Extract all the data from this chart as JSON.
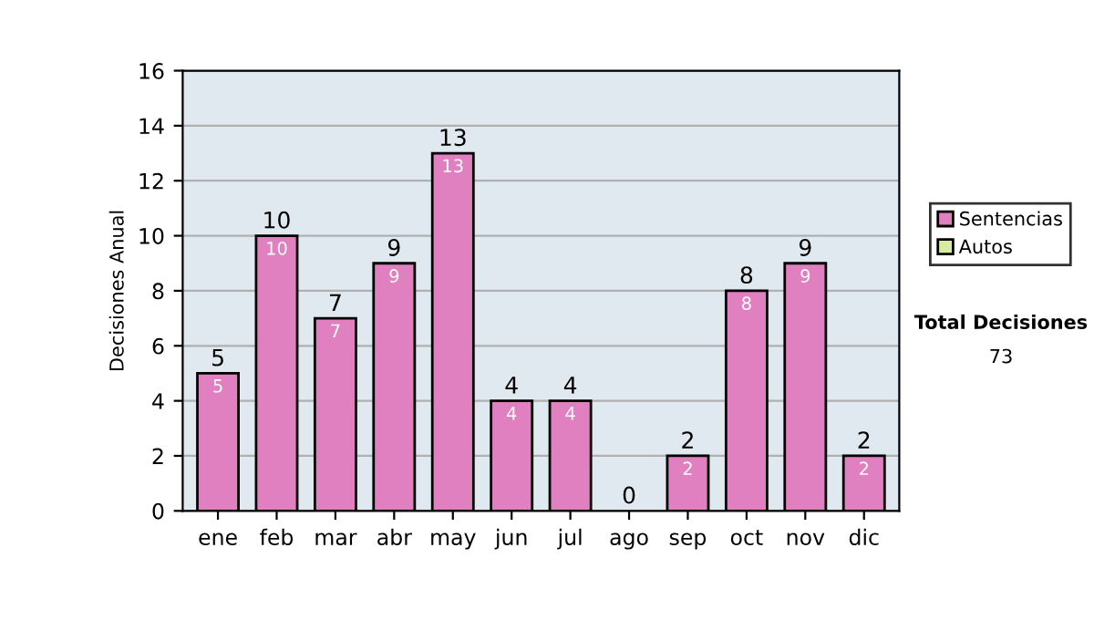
{
  "chart_data": {
    "type": "bar",
    "ylabel": "Decisiones Anual",
    "categories": [
      "ene",
      "feb",
      "mar",
      "abr",
      "may",
      "jun",
      "jul",
      "ago",
      "sep",
      "oct",
      "nov",
      "dic"
    ],
    "stacked": true,
    "series": [
      {
        "name": "Sentencias",
        "color": "#e080c0",
        "values": [
          5,
          10,
          7,
          9,
          13,
          4,
          4,
          0,
          2,
          8,
          9,
          2
        ],
        "value_labels": [
          "5",
          "10",
          "7",
          "9",
          "13",
          "4",
          "4",
          null,
          "2",
          "8",
          "9",
          "2"
        ]
      },
      {
        "name": "Autos",
        "color": "#d8eca0",
        "values": [
          0,
          0,
          0,
          0,
          0,
          0,
          0,
          0,
          0,
          0,
          0,
          0
        ]
      }
    ],
    "totals": [
      "5",
      "10",
      "7",
      "9",
      "13",
      "4",
      "4",
      "0",
      "2",
      "8",
      "9",
      "2"
    ],
    "ylim": [
      0,
      16
    ],
    "yticks": [
      0,
      2,
      4,
      6,
      8,
      10,
      12,
      14,
      16
    ],
    "grid": "y",
    "legend": "right",
    "annotations": [
      "Total Decisiones",
      "73"
    ]
  }
}
